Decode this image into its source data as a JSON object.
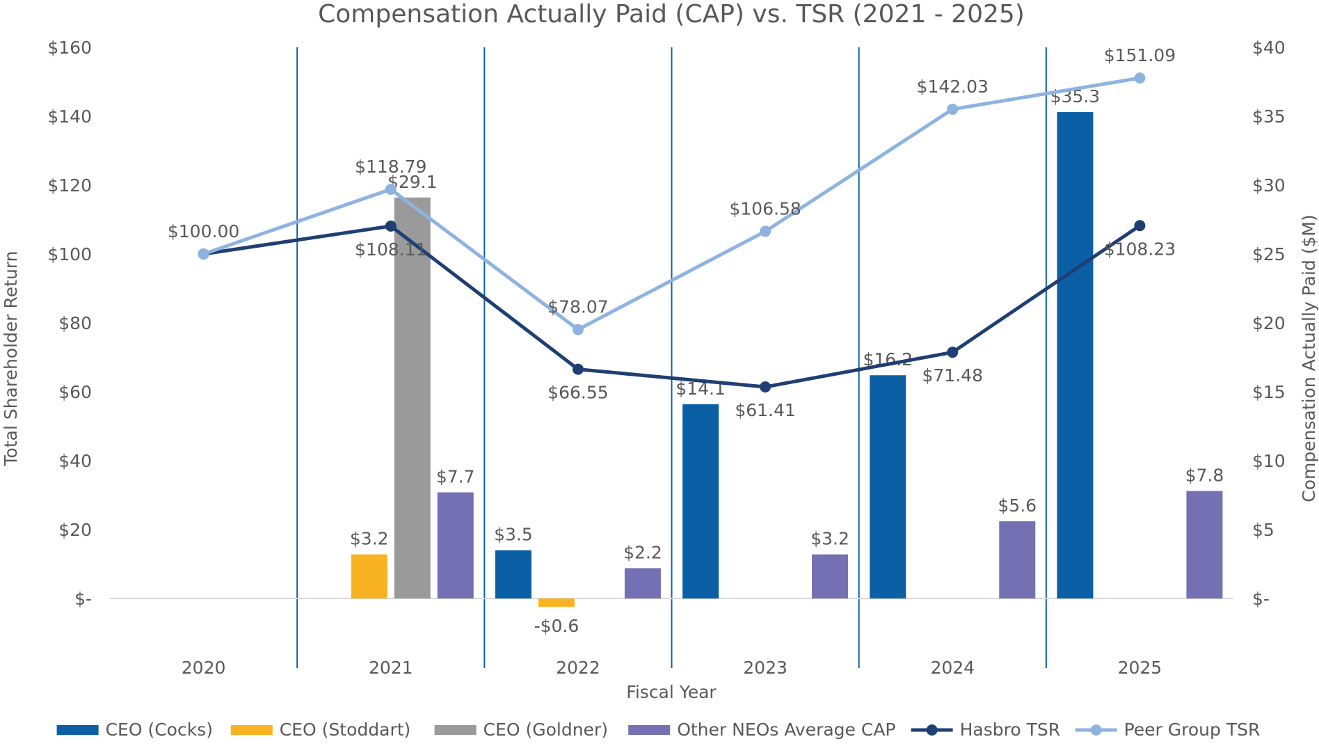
{
  "chart_data": {
    "type": "bar+line",
    "title": "Compensation Actually Paid (CAP) vs. TSR (2021 - 2025)",
    "xlabel": "Fiscal Year",
    "ylabel_left": "Total Shareholder Return",
    "ylabel_right": "Compensation Actually Paid ($M)",
    "categories": [
      "2020",
      "2021",
      "2022",
      "2023",
      "2024",
      "2025"
    ],
    "ylim_left": [
      0,
      160
    ],
    "ylim_right": [
      0,
      40
    ],
    "left_ticks": [
      "$-",
      "$20",
      "$40",
      "$60",
      "$80",
      "$100",
      "$120",
      "$140",
      "$160"
    ],
    "right_ticks": [
      "$-",
      "$5",
      "$10",
      "$15",
      "$20",
      "$25",
      "$30",
      "$35",
      "$40"
    ],
    "bars": [
      {
        "category": "2021",
        "series": "CEO (Stoddart)",
        "value": 3.2,
        "label": "$3.2"
      },
      {
        "category": "2021",
        "series": "CEO (Goldner)",
        "value": 29.1,
        "label": "$29.1"
      },
      {
        "category": "2021",
        "series": "Other NEOs Average CAP",
        "value": 7.7,
        "label": "$7.7"
      },
      {
        "category": "2022",
        "series": "CEO (Cocks)",
        "value": 3.5,
        "label": "$3.5"
      },
      {
        "category": "2022",
        "series": "CEO (Stoddart)",
        "value": -0.6,
        "label": "-$0.6"
      },
      {
        "category": "2022",
        "series": "Other NEOs Average CAP",
        "value": 2.2,
        "label": "$2.2"
      },
      {
        "category": "2023",
        "series": "CEO (Cocks)",
        "value": 14.1,
        "label": "$14.1"
      },
      {
        "category": "2023",
        "series": "Other NEOs Average CAP",
        "value": 3.2,
        "label": "$3.2"
      },
      {
        "category": "2024",
        "series": "CEO (Cocks)",
        "value": 16.2,
        "label": "$16.2"
      },
      {
        "category": "2024",
        "series": "Other NEOs Average CAP",
        "value": 5.6,
        "label": "$5.6"
      },
      {
        "category": "2025",
        "series": "CEO (Cocks)",
        "value": 35.3,
        "label": "$35.3"
      },
      {
        "category": "2025",
        "series": "Other NEOs Average CAP",
        "value": 7.8,
        "label": "$7.8"
      }
    ],
    "lines": [
      {
        "name": "Hasbro TSR",
        "color": "#1f3f73",
        "values": [
          100.0,
          108.11,
          66.55,
          61.41,
          71.48,
          108.23
        ],
        "labels": [
          "",
          "$108.11",
          "$66.55",
          "$61.41",
          "$71.48",
          "$108.23"
        ]
      },
      {
        "name": "Peer Group TSR",
        "color": "#8fb3e0",
        "values": [
          100.0,
          118.79,
          78.07,
          106.58,
          142.03,
          151.09
        ],
        "labels": [
          "$100.00",
          "$118.79",
          "$78.07",
          "$106.58",
          "$142.03",
          "$151.09"
        ]
      }
    ],
    "legend": {
      "position": "bottom",
      "items": [
        {
          "name": "CEO (Cocks)",
          "kind": "bar",
          "color": "#0b5fa5"
        },
        {
          "name": "CEO (Stoddart)",
          "kind": "bar",
          "color": "#f9b221"
        },
        {
          "name": "CEO (Goldner)",
          "kind": "bar",
          "color": "#9a9a9a"
        },
        {
          "name": "Other NEOs Average CAP",
          "kind": "bar",
          "color": "#7570b3"
        },
        {
          "name": "Hasbro TSR",
          "kind": "line",
          "color": "#1f3f73"
        },
        {
          "name": "Peer Group TSR",
          "kind": "line",
          "color": "#8fb3e0"
        }
      ]
    },
    "grid": false
  }
}
